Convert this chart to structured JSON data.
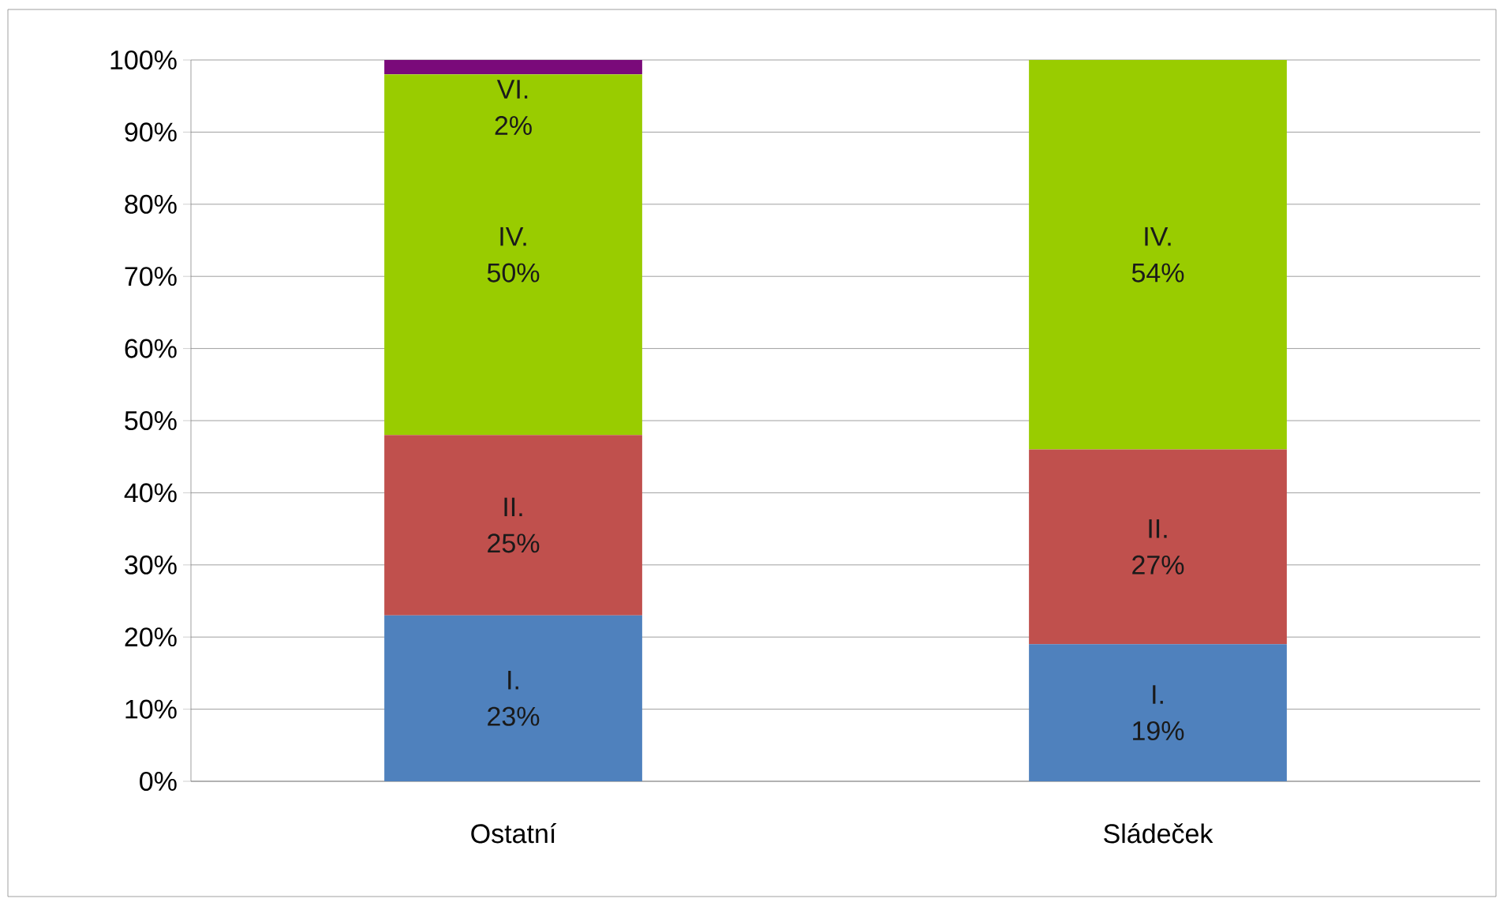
{
  "chart_data": {
    "type": "bar",
    "stacked": true,
    "grid": "y",
    "categories": [
      "Ostatní",
      "Sládeček"
    ],
    "series": [
      {
        "name": "I.",
        "color": "#4f81bd",
        "values": [
          23,
          19
        ],
        "value_labels": [
          "23%",
          "19%"
        ]
      },
      {
        "name": "II.",
        "color": "#c0504d",
        "values": [
          25,
          27
        ],
        "value_labels": [
          "25%",
          "27%"
        ]
      },
      {
        "name": "IV.",
        "color": "#99cc00",
        "values": [
          50,
          54
        ],
        "value_labels": [
          "50%",
          "54%"
        ]
      },
      {
        "name": "VI.",
        "color": "#7a0a7a",
        "values": [
          2,
          null
        ],
        "value_labels": [
          "2%",
          null
        ]
      }
    ],
    "ylim": [
      0,
      100
    ],
    "yticks": [
      {
        "value": 0,
        "label": "0%"
      },
      {
        "value": 10,
        "label": "10%"
      },
      {
        "value": 20,
        "label": "20%"
      },
      {
        "value": 30,
        "label": "30%"
      },
      {
        "value": 40,
        "label": "40%"
      },
      {
        "value": 50,
        "label": "50%"
      },
      {
        "value": 60,
        "label": "60%"
      },
      {
        "value": 70,
        "label": "70%"
      },
      {
        "value": 80,
        "label": "80%"
      },
      {
        "value": 90,
        "label": "90%"
      },
      {
        "value": 100,
        "label": "100%"
      }
    ]
  }
}
